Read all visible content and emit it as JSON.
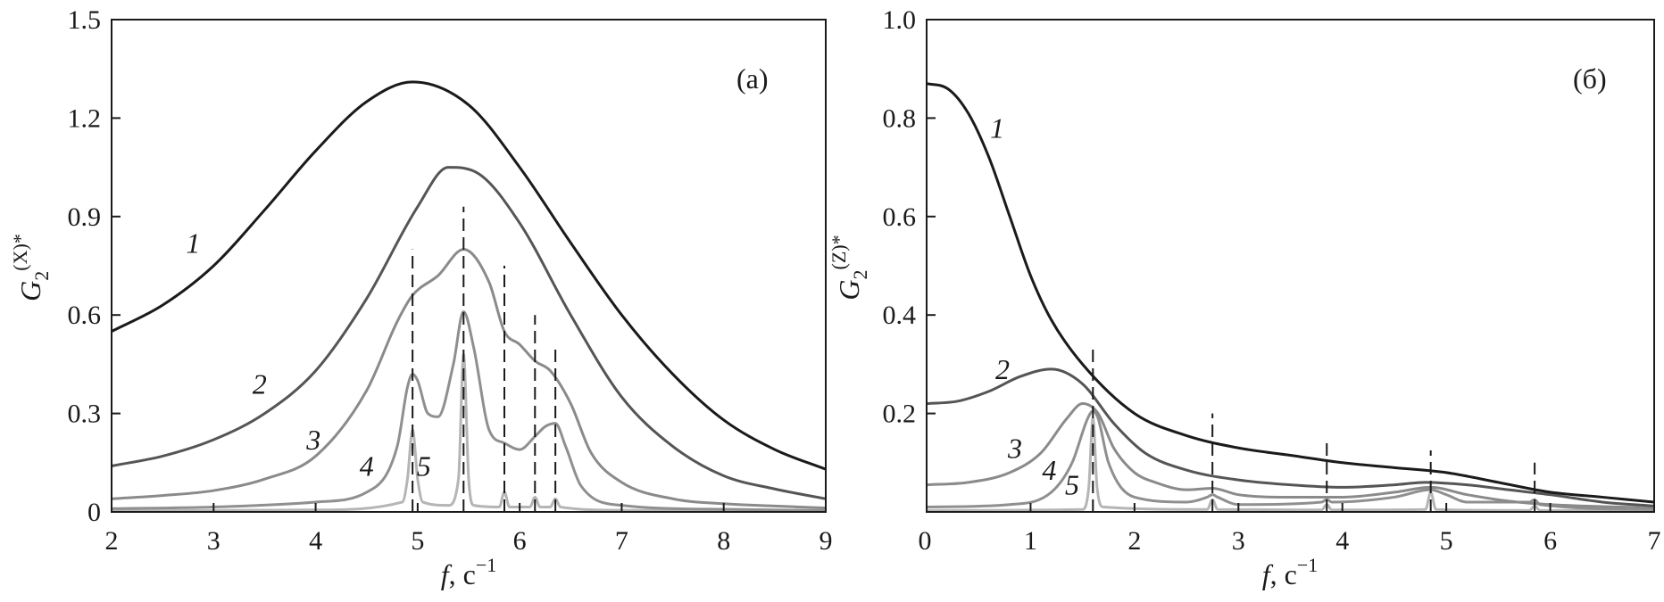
{
  "chart_data": [
    {
      "type": "line",
      "panel_label": "(a)",
      "xlabel_var": "f",
      "xlabel_unit": ", c",
      "xlabel_exp": "−1",
      "ylabel_var": "G",
      "ylabel_sub": "2",
      "ylabel_sup": "(X)*",
      "xlim": [
        2,
        9
      ],
      "ylim": [
        0,
        1.5
      ],
      "xticks": [
        2,
        3,
        4,
        5,
        6,
        7,
        8,
        9
      ],
      "xtick_labels": [
        "2",
        "3",
        "4",
        "5",
        "6",
        "7",
        "8",
        "9"
      ],
      "yticks": [
        0,
        0.3,
        0.6,
        0.9,
        1.2,
        1.5
      ],
      "ytick_labels": [
        "0",
        "0.3",
        "0.6",
        "0.9",
        "1.2",
        "1.5"
      ],
      "grid": false,
      "series": [
        {
          "label": "1",
          "color": "#1a1a1a",
          "label_at": [
            2.8,
            0.79
          ],
          "x": [
            2,
            2.5,
            3,
            3.5,
            4,
            4.5,
            4.95,
            5.5,
            6,
            6.5,
            7,
            7.5,
            8,
            8.5,
            9
          ],
          "y": [
            0.55,
            0.63,
            0.75,
            0.92,
            1.1,
            1.25,
            1.31,
            1.24,
            1.05,
            0.82,
            0.6,
            0.42,
            0.28,
            0.19,
            0.13
          ]
        },
        {
          "label": "2",
          "color": "#555555",
          "label_at": [
            3.45,
            0.36
          ],
          "x": [
            2,
            2.5,
            3,
            3.5,
            4,
            4.5,
            5,
            5.3,
            5.6,
            6,
            6.5,
            7,
            7.5,
            8,
            8.5,
            9
          ],
          "y": [
            0.14,
            0.17,
            0.22,
            0.3,
            0.43,
            0.65,
            0.93,
            1.05,
            1.03,
            0.88,
            0.6,
            0.35,
            0.2,
            0.11,
            0.07,
            0.04
          ]
        },
        {
          "label": "3",
          "color": "#8a8a8a",
          "label_at": [
            3.98,
            0.19
          ],
          "x": [
            2,
            2.5,
            3,
            3.5,
            4,
            4.5,
            4.8,
            4.95,
            5.2,
            5.45,
            5.7,
            5.85,
            6,
            6.15,
            6.3,
            6.5,
            6.7,
            7,
            7.5,
            8,
            8.5,
            9
          ],
          "y": [
            0.04,
            0.05,
            0.065,
            0.1,
            0.17,
            0.37,
            0.58,
            0.66,
            0.72,
            0.8,
            0.7,
            0.55,
            0.51,
            0.46,
            0.43,
            0.33,
            0.18,
            0.09,
            0.04,
            0.025,
            0.018,
            0.012
          ]
        },
        {
          "label": "4",
          "color": "#8f8f8f",
          "label_at": [
            4.5,
            0.11
          ],
          "x": [
            2,
            3,
            4,
            4.5,
            4.8,
            4.9,
            4.95,
            5.0,
            5.1,
            5.2,
            5.35,
            5.45,
            5.55,
            5.7,
            5.85,
            6.0,
            6.15,
            6.25,
            6.35,
            6.45,
            6.6,
            7,
            8,
            9
          ],
          "y": [
            0.01,
            0.015,
            0.03,
            0.06,
            0.2,
            0.38,
            0.42,
            0.4,
            0.3,
            0.29,
            0.45,
            0.61,
            0.5,
            0.25,
            0.21,
            0.19,
            0.23,
            0.26,
            0.27,
            0.2,
            0.08,
            0.02,
            0.008,
            0.004
          ]
        },
        {
          "label": "5",
          "color": "#b5b5b5",
          "label_at": [
            5.06,
            0.11
          ],
          "x": [
            2,
            4,
            4.85,
            4.9,
            4.95,
            5.0,
            5.05,
            5.3,
            5.4,
            5.45,
            5.5,
            5.55,
            5.8,
            5.85,
            5.9,
            6.1,
            6.15,
            6.2,
            6.3,
            6.35,
            6.4,
            7,
            9
          ],
          "y": [
            0.003,
            0.006,
            0.03,
            0.1,
            0.25,
            0.1,
            0.03,
            0.02,
            0.1,
            0.48,
            0.1,
            0.02,
            0.015,
            0.06,
            0.015,
            0.015,
            0.045,
            0.015,
            0.015,
            0.04,
            0.015,
            0.005,
            0.002
          ]
        }
      ],
      "dashed_markers": [
        {
          "x": 4.95,
          "ymax": 0.8
        },
        {
          "x": 5.45,
          "ymax": 0.93
        },
        {
          "x": 5.85,
          "ymax": 0.75
        },
        {
          "x": 6.15,
          "ymax": 0.6
        },
        {
          "x": 6.35,
          "ymax": 0.5
        }
      ]
    },
    {
      "type": "line",
      "panel_label": "(б)",
      "xlabel_var": "f",
      "xlabel_unit": ", c",
      "xlabel_exp": "−1",
      "ylabel_var": "G",
      "ylabel_sub": "2",
      "ylabel_sup": "(Z)*",
      "xlim": [
        0,
        7
      ],
      "ylim": [
        0,
        1.0
      ],
      "xticks": [
        0,
        1,
        2,
        3,
        4,
        5,
        6,
        7
      ],
      "xtick_labels": [
        "0",
        "1",
        "2",
        "3",
        "4",
        "5",
        "6",
        "7"
      ],
      "yticks": [
        0.2,
        0.4,
        0.6,
        0.8,
        1.0
      ],
      "ytick_labels": [
        "0.2",
        "0.4",
        "0.6",
        "0.8",
        "1.0"
      ],
      "grid": false,
      "series": [
        {
          "label": "1",
          "color": "#1a1a1a",
          "label_at": [
            0.68,
            0.76
          ],
          "x": [
            0,
            0.2,
            0.4,
            0.6,
            0.8,
            1.0,
            1.2,
            1.5,
            2.0,
            2.5,
            3.0,
            3.5,
            4.0,
            4.5,
            5.0,
            5.5,
            6.0,
            6.5,
            7.0
          ],
          "y": [
            0.87,
            0.86,
            0.81,
            0.72,
            0.6,
            0.48,
            0.39,
            0.3,
            0.2,
            0.155,
            0.13,
            0.115,
            0.1,
            0.09,
            0.08,
            0.06,
            0.04,
            0.03,
            0.02
          ]
        },
        {
          "label": "2",
          "color": "#555555",
          "label_at": [
            0.73,
            0.27
          ],
          "x": [
            0,
            0.3,
            0.6,
            0.9,
            1.2,
            1.5,
            1.8,
            2.1,
            2.5,
            3.0,
            3.5,
            4.0,
            4.5,
            4.8,
            5.2,
            5.6,
            6.0,
            6.5,
            7.0
          ],
          "y": [
            0.22,
            0.225,
            0.245,
            0.275,
            0.29,
            0.26,
            0.18,
            0.12,
            0.085,
            0.065,
            0.055,
            0.05,
            0.055,
            0.06,
            0.055,
            0.045,
            0.035,
            0.02,
            0.012
          ]
        },
        {
          "label": "3",
          "color": "#8a8a8a",
          "label_at": [
            0.85,
            0.11
          ],
          "x": [
            0,
            0.4,
            0.8,
            1.1,
            1.35,
            1.5,
            1.65,
            1.8,
            2.0,
            2.2,
            2.5,
            2.75,
            3.0,
            3.5,
            4.0,
            4.5,
            4.85,
            5.2,
            5.6,
            6.0,
            7.0
          ],
          "y": [
            0.055,
            0.06,
            0.08,
            0.12,
            0.19,
            0.22,
            0.2,
            0.13,
            0.08,
            0.06,
            0.045,
            0.048,
            0.035,
            0.03,
            0.03,
            0.04,
            0.05,
            0.035,
            0.022,
            0.015,
            0.008
          ]
        },
        {
          "label": "4",
          "color": "#8f8f8f",
          "label_at": [
            1.18,
            0.065
          ],
          "x": [
            0,
            0.8,
            1.2,
            1.4,
            1.55,
            1.6,
            1.65,
            1.75,
            2.0,
            2.5,
            2.7,
            2.75,
            2.8,
            3.0,
            3.8,
            3.85,
            3.9,
            4.5,
            4.85,
            5.0,
            5.2,
            5.8,
            5.85,
            5.9,
            7.0
          ],
          "y": [
            0.01,
            0.015,
            0.04,
            0.1,
            0.19,
            0.205,
            0.19,
            0.1,
            0.03,
            0.02,
            0.03,
            0.035,
            0.03,
            0.015,
            0.02,
            0.025,
            0.02,
            0.03,
            0.045,
            0.035,
            0.02,
            0.02,
            0.025,
            0.015,
            0.005
          ]
        },
        {
          "label": "5",
          "color": "#b5b5b5",
          "label_at": [
            1.4,
            0.035
          ],
          "x": [
            0,
            1.5,
            1.56,
            1.6,
            1.64,
            1.7,
            2.7,
            2.75,
            2.8,
            3.8,
            3.85,
            3.9,
            4.8,
            4.85,
            4.9,
            5.8,
            5.85,
            5.9,
            7.0
          ],
          "y": [
            0.003,
            0.005,
            0.05,
            0.19,
            0.05,
            0.01,
            0.005,
            0.025,
            0.005,
            0.004,
            0.015,
            0.004,
            0.005,
            0.04,
            0.005,
            0.003,
            0.012,
            0.003,
            0.002
          ]
        }
      ],
      "dashed_markers": [
        {
          "x": 1.6,
          "ymax": 0.34
        },
        {
          "x": 2.75,
          "ymax": 0.2
        },
        {
          "x": 3.85,
          "ymax": 0.145
        },
        {
          "x": 4.85,
          "ymax": 0.125
        },
        {
          "x": 5.85,
          "ymax": 0.1
        }
      ]
    }
  ]
}
